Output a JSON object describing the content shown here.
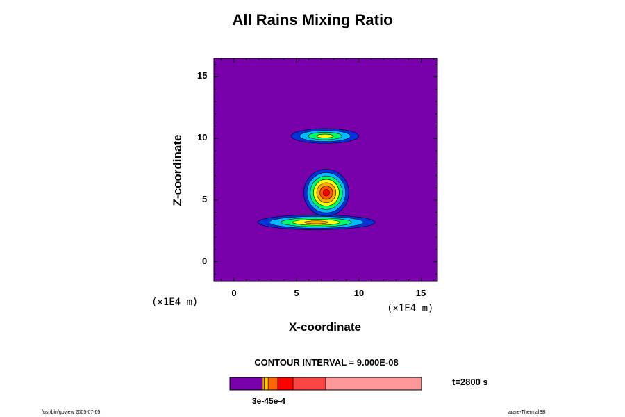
{
  "chart_data": {
    "type": "heatmap",
    "title": "All Rains Mixing Ratio",
    "xlabel": "X-coordinate",
    "ylabel": "Z-coordinate",
    "x_unit": "(×1E4 m)",
    "y_unit": "(×1E4 m)",
    "xlim": [
      -1.6,
      16.3
    ],
    "ylim": [
      -1.6,
      16.5
    ],
    "x_ticks": [
      "0",
      "5",
      "10",
      "15"
    ],
    "y_ticks": [
      "0",
      "5",
      "10",
      "15"
    ],
    "contour_interval": "CONTOUR INTERVAL = 9.000E-08",
    "time": "t=2800 s",
    "colorbar_tick_label": "3e-45e-4",
    "background_color": "#7700aa",
    "levels": [
      "#7700aa",
      "#0033dd",
      "#00bbff",
      "#00ff66",
      "#ffff00",
      "#ffaa00",
      "#ff5500",
      "#ff0000"
    ],
    "features": [
      {
        "x": 7.3,
        "y": 10.2,
        "rx": 2.7,
        "ry": 0.6,
        "max_level": 4
      },
      {
        "x": 6.6,
        "y": 3.2,
        "rx": 4.7,
        "ry": 0.6,
        "max_level": 5
      },
      {
        "x": 7.4,
        "y": 5.6,
        "rx": 1.8,
        "ry": 1.9,
        "max_level": 7
      }
    ],
    "colorbar": [
      {
        "to": 0.17,
        "color": "#7700aa"
      },
      {
        "to": 0.18,
        "color": "#ff9900"
      },
      {
        "to": 0.2,
        "color": "#ffcc00"
      },
      {
        "to": 0.25,
        "color": "#ff6600"
      },
      {
        "to": 0.33,
        "color": "#ff0000"
      },
      {
        "to": 0.5,
        "color": "#ff4444"
      },
      {
        "to": 1.0,
        "color": "#ff9999"
      }
    ]
  },
  "footer": {
    "left": "/usr/bin/gpview 2005-07-05",
    "right": "arare-ThermalBB"
  }
}
